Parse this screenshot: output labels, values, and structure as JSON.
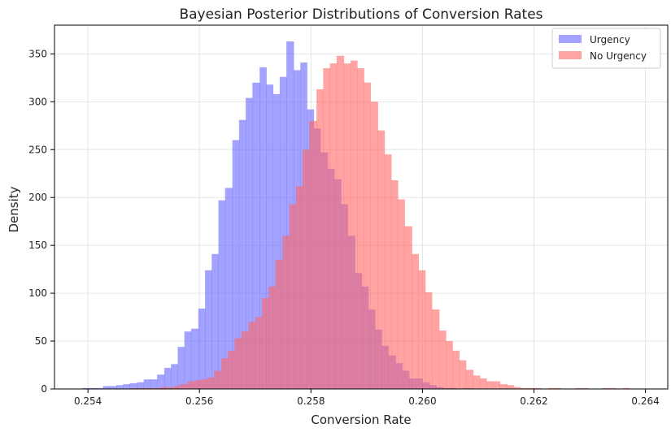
{
  "chart_data": {
    "type": "histogram",
    "title": "Bayesian Posterior Distributions of Conversion Rates",
    "xlabel": "Conversion Rate",
    "ylabel": "Density",
    "xlim": [
      0.2534,
      0.2644
    ],
    "ylim": [
      0,
      380
    ],
    "x_ticks": [
      0.254,
      0.256,
      0.258,
      0.26,
      0.262,
      0.264
    ],
    "x_tick_labels": [
      "0.254",
      "0.256",
      "0.258",
      "0.260",
      "0.262",
      "0.264"
    ],
    "y_ticks": [
      0,
      50,
      100,
      150,
      200,
      250,
      300,
      350
    ],
    "y_tick_labels": [
      "0",
      "50",
      "100",
      "150",
      "200",
      "250",
      "300",
      "350"
    ],
    "grid": true,
    "legend_position": "top-right",
    "series": [
      {
        "name": "Urgency",
        "color": "#6666ff",
        "bins": [
          [
            0.2539,
            0.25402,
            1
          ],
          [
            0.25402,
            0.25414,
            1
          ],
          [
            0.25414,
            0.25427,
            1
          ],
          [
            0.25427,
            0.25439,
            3
          ],
          [
            0.25439,
            0.25451,
            3
          ],
          [
            0.25451,
            0.25463,
            4
          ],
          [
            0.25463,
            0.25475,
            5
          ],
          [
            0.25475,
            0.25488,
            6
          ],
          [
            0.25488,
            0.255,
            7
          ],
          [
            0.255,
            0.25512,
            10
          ],
          [
            0.25512,
            0.25524,
            10
          ],
          [
            0.25524,
            0.25537,
            15
          ],
          [
            0.25537,
            0.25549,
            22
          ],
          [
            0.25549,
            0.25561,
            26
          ],
          [
            0.25561,
            0.25573,
            44
          ],
          [
            0.25573,
            0.25585,
            60
          ],
          [
            0.25585,
            0.25598,
            63
          ],
          [
            0.25598,
            0.2561,
            84
          ],
          [
            0.2561,
            0.25622,
            124
          ],
          [
            0.25622,
            0.25634,
            141
          ],
          [
            0.25634,
            0.25646,
            197
          ],
          [
            0.25646,
            0.25659,
            210
          ],
          [
            0.25659,
            0.25671,
            260
          ],
          [
            0.25671,
            0.25683,
            281
          ],
          [
            0.25683,
            0.25695,
            304
          ],
          [
            0.25695,
            0.25708,
            320
          ],
          [
            0.25708,
            0.2572,
            336
          ],
          [
            0.2572,
            0.25732,
            318
          ],
          [
            0.25732,
            0.25744,
            308
          ],
          [
            0.25744,
            0.25756,
            326
          ],
          [
            0.25756,
            0.25769,
            363
          ],
          [
            0.25769,
            0.25781,
            333
          ],
          [
            0.25781,
            0.25793,
            341
          ],
          [
            0.25793,
            0.25805,
            292
          ],
          [
            0.25805,
            0.25817,
            272
          ],
          [
            0.25817,
            0.2583,
            247
          ],
          [
            0.2583,
            0.25842,
            230
          ],
          [
            0.25842,
            0.25854,
            219
          ],
          [
            0.25854,
            0.25866,
            193
          ],
          [
            0.25866,
            0.25879,
            160
          ],
          [
            0.25879,
            0.25891,
            121
          ],
          [
            0.25891,
            0.25903,
            107
          ],
          [
            0.25903,
            0.25915,
            83
          ],
          [
            0.25915,
            0.25927,
            62
          ],
          [
            0.25927,
            0.25939,
            45
          ],
          [
            0.25939,
            0.25952,
            35
          ],
          [
            0.25952,
            0.25964,
            27
          ],
          [
            0.25964,
            0.25976,
            19
          ],
          [
            0.25976,
            0.25988,
            11
          ],
          [
            0.25988,
            0.26,
            11
          ],
          [
            0.26,
            0.26013,
            7
          ],
          [
            0.26013,
            0.26025,
            4
          ],
          [
            0.26025,
            0.26037,
            2
          ],
          [
            0.26037,
            0.26049,
            1
          ],
          [
            0.26049,
            0.26061,
            1
          ],
          [
            0.26061,
            0.26074,
            0
          ],
          [
            0.26074,
            0.26086,
            1
          ]
        ]
      },
      {
        "name": "No Urgency",
        "color": "#ff6666",
        "bins": [
          [
            0.2548,
            0.25492,
            1
          ],
          [
            0.25492,
            0.25504,
            1
          ],
          [
            0.25504,
            0.25516,
            1
          ],
          [
            0.25516,
            0.25529,
            1
          ],
          [
            0.25529,
            0.25541,
            2
          ],
          [
            0.25541,
            0.25553,
            2
          ],
          [
            0.25553,
            0.25565,
            3
          ],
          [
            0.25565,
            0.25578,
            5
          ],
          [
            0.25578,
            0.2559,
            8
          ],
          [
            0.2559,
            0.25602,
            9
          ],
          [
            0.25602,
            0.25614,
            10
          ],
          [
            0.25614,
            0.25626,
            12
          ],
          [
            0.25626,
            0.25639,
            19
          ],
          [
            0.25639,
            0.25651,
            32
          ],
          [
            0.25651,
            0.25663,
            40
          ],
          [
            0.25663,
            0.25675,
            53
          ],
          [
            0.25675,
            0.25688,
            60
          ],
          [
            0.25688,
            0.257,
            70
          ],
          [
            0.257,
            0.25712,
            75
          ],
          [
            0.25712,
            0.25724,
            95
          ],
          [
            0.25724,
            0.25736,
            107
          ],
          [
            0.25736,
            0.25749,
            135
          ],
          [
            0.25749,
            0.25761,
            160
          ],
          [
            0.25761,
            0.25773,
            193
          ],
          [
            0.25773,
            0.25785,
            212
          ],
          [
            0.25785,
            0.25797,
            250
          ],
          [
            0.25797,
            0.2581,
            280
          ],
          [
            0.2581,
            0.25822,
            313
          ],
          [
            0.25822,
            0.25834,
            335
          ],
          [
            0.25834,
            0.25846,
            340
          ],
          [
            0.25846,
            0.25859,
            348
          ],
          [
            0.25859,
            0.25871,
            340
          ],
          [
            0.25871,
            0.25883,
            343
          ],
          [
            0.25883,
            0.25895,
            335
          ],
          [
            0.25895,
            0.25907,
            320
          ],
          [
            0.25907,
            0.2592,
            300
          ],
          [
            0.2592,
            0.25932,
            270
          ],
          [
            0.25932,
            0.25944,
            245
          ],
          [
            0.25944,
            0.25956,
            218
          ],
          [
            0.25956,
            0.25968,
            198
          ],
          [
            0.25968,
            0.25981,
            170
          ],
          [
            0.25981,
            0.25993,
            141
          ],
          [
            0.25993,
            0.26005,
            124
          ],
          [
            0.26005,
            0.26017,
            101
          ],
          [
            0.26017,
            0.2603,
            83
          ],
          [
            0.2603,
            0.26042,
            61
          ],
          [
            0.26042,
            0.26054,
            50
          ],
          [
            0.26054,
            0.26066,
            40
          ],
          [
            0.26066,
            0.26078,
            30
          ],
          [
            0.26078,
            0.26091,
            20
          ],
          [
            0.26091,
            0.26103,
            14
          ],
          [
            0.26103,
            0.26115,
            11
          ],
          [
            0.26115,
            0.26127,
            8
          ],
          [
            0.26127,
            0.26139,
            8
          ],
          [
            0.26139,
            0.26152,
            5
          ],
          [
            0.26152,
            0.26164,
            4
          ],
          [
            0.26164,
            0.26176,
            2
          ],
          [
            0.26176,
            0.26188,
            1
          ],
          [
            0.26188,
            0.262,
            1
          ],
          [
            0.262,
            0.26213,
            1
          ],
          [
            0.26213,
            0.26225,
            0
          ],
          [
            0.26225,
            0.26237,
            1
          ],
          [
            0.26237,
            0.26249,
            1
          ],
          [
            0.26249,
            0.26261,
            0
          ],
          [
            0.26261,
            0.26274,
            0
          ],
          [
            0.26274,
            0.26286,
            1
          ],
          [
            0.26286,
            0.26298,
            1
          ],
          [
            0.26298,
            0.2631,
            0
          ],
          [
            0.2631,
            0.26322,
            0
          ],
          [
            0.26322,
            0.26335,
            1
          ],
          [
            0.26335,
            0.26347,
            1
          ],
          [
            0.26347,
            0.26359,
            0
          ],
          [
            0.26359,
            0.26371,
            1
          ]
        ]
      }
    ]
  }
}
